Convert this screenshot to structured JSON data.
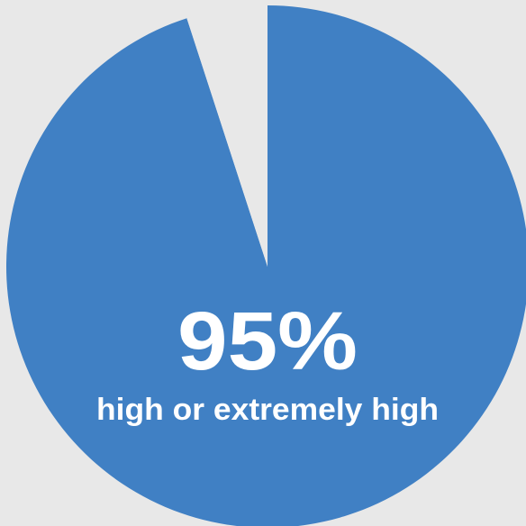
{
  "chart_data": {
    "type": "pie",
    "slices": [
      {
        "label": "high or extremely high",
        "value": 95,
        "color": "#4080c4"
      },
      {
        "label": "",
        "value": 5,
        "color": "#e8e8e8"
      }
    ],
    "center_value": "95%",
    "center_label": "high or extremely high",
    "background_color": "#e8e8e8"
  }
}
